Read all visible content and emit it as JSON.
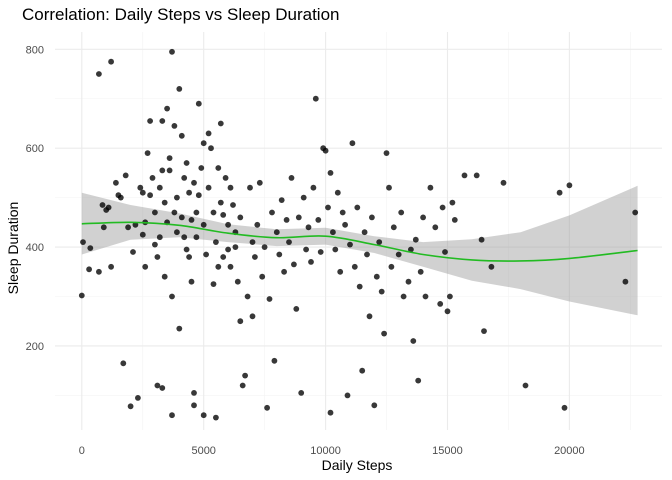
{
  "chart_data": {
    "type": "scatter",
    "title": "Correlation: Daily Steps vs Sleep Duration",
    "xlabel": "Daily Steps",
    "ylabel": "Sleep Duration",
    "xlim": [
      -1100,
      23800
    ],
    "ylim": [
      30,
      835
    ],
    "x_ticks": [
      0,
      5000,
      10000,
      15000,
      20000
    ],
    "y_ticks": [
      200,
      400,
      600,
      800
    ],
    "x_tick_labels": [
      "0",
      "5000",
      "10000",
      "15000",
      "20000"
    ],
    "y_tick_labels": [
      "200",
      "400",
      "600",
      "800"
    ],
    "grid": true,
    "legend": "none",
    "colors": {
      "points": "#000000",
      "smooth_line": "#22bb22",
      "ribbon": "#999999"
    },
    "points": [
      [
        0,
        302
      ],
      [
        50,
        410
      ],
      [
        300,
        355
      ],
      [
        350,
        398
      ],
      [
        700,
        750
      ],
      [
        700,
        350
      ],
      [
        850,
        485
      ],
      [
        900,
        440
      ],
      [
        1000,
        475
      ],
      [
        1100,
        480
      ],
      [
        1200,
        775
      ],
      [
        1200,
        360
      ],
      [
        1400,
        530
      ],
      [
        1500,
        505
      ],
      [
        1600,
        500
      ],
      [
        1700,
        165
      ],
      [
        1800,
        545
      ],
      [
        1900,
        440
      ],
      [
        2000,
        78
      ],
      [
        2100,
        390
      ],
      [
        2200,
        445
      ],
      [
        2300,
        95
      ],
      [
        2400,
        520
      ],
      [
        2500,
        425
      ],
      [
        2500,
        510
      ],
      [
        2600,
        450
      ],
      [
        2600,
        360
      ],
      [
        2700,
        590
      ],
      [
        2800,
        655
      ],
      [
        2800,
        505
      ],
      [
        2900,
        540
      ],
      [
        3000,
        470
      ],
      [
        3000,
        405
      ],
      [
        3100,
        380
      ],
      [
        3100,
        120
      ],
      [
        3200,
        520
      ],
      [
        3200,
        420
      ],
      [
        3300,
        655
      ],
      [
        3300,
        555
      ],
      [
        3300,
        115
      ],
      [
        3400,
        340
      ],
      [
        3400,
        490
      ],
      [
        3500,
        680
      ],
      [
        3500,
        450
      ],
      [
        3600,
        580
      ],
      [
        3600,
        555
      ],
      [
        3700,
        60
      ],
      [
        3700,
        795
      ],
      [
        3700,
        300
      ],
      [
        3800,
        645
      ],
      [
        3800,
        470
      ],
      [
        3900,
        500
      ],
      [
        3900,
        430
      ],
      [
        4000,
        720
      ],
      [
        4000,
        235
      ],
      [
        4100,
        625
      ],
      [
        4100,
        460
      ],
      [
        4200,
        540
      ],
      [
        4200,
        420
      ],
      [
        4300,
        570
      ],
      [
        4300,
        395
      ],
      [
        4400,
        510
      ],
      [
        4400,
        380
      ],
      [
        4500,
        455
      ],
      [
        4500,
        330
      ],
      [
        4600,
        530
      ],
      [
        4600,
        80
      ],
      [
        4600,
        105
      ],
      [
        4700,
        470
      ],
      [
        4700,
        420
      ],
      [
        4800,
        690
      ],
      [
        4800,
        505
      ],
      [
        4900,
        560
      ],
      [
        5000,
        60
      ],
      [
        5000,
        610
      ],
      [
        5000,
        445
      ],
      [
        5100,
        385
      ],
      [
        5200,
        520
      ],
      [
        5200,
        630
      ],
      [
        5300,
        600
      ],
      [
        5400,
        470
      ],
      [
        5400,
        325
      ],
      [
        5500,
        55
      ],
      [
        5500,
        410
      ],
      [
        5600,
        560
      ],
      [
        5600,
        360
      ],
      [
        5700,
        490
      ],
      [
        5700,
        650
      ],
      [
        5800,
        465
      ],
      [
        5800,
        380
      ],
      [
        5900,
        540
      ],
      [
        6000,
        445
      ],
      [
        6000,
        395
      ],
      [
        6100,
        520
      ],
      [
        6100,
        360
      ],
      [
        6200,
        485
      ],
      [
        6300,
        430
      ],
      [
        6300,
        400
      ],
      [
        6400,
        330
      ],
      [
        6500,
        460
      ],
      [
        6500,
        250
      ],
      [
        6600,
        120
      ],
      [
        6700,
        140
      ],
      [
        6800,
        300
      ],
      [
        6900,
        520
      ],
      [
        7000,
        260
      ],
      [
        7000,
        410
      ],
      [
        7100,
        380
      ],
      [
        7200,
        445
      ],
      [
        7300,
        530
      ],
      [
        7400,
        340
      ],
      [
        7500,
        400
      ],
      [
        7600,
        75
      ],
      [
        7700,
        295
      ],
      [
        7800,
        470
      ],
      [
        7900,
        170
      ],
      [
        8000,
        430
      ],
      [
        8100,
        385
      ],
      [
        8200,
        495
      ],
      [
        8300,
        350
      ],
      [
        8400,
        455
      ],
      [
        8500,
        410
      ],
      [
        8600,
        540
      ],
      [
        8700,
        365
      ],
      [
        8800,
        275
      ],
      [
        8900,
        460
      ],
      [
        9000,
        105
      ],
      [
        9100,
        500
      ],
      [
        9200,
        395
      ],
      [
        9300,
        440
      ],
      [
        9400,
        370
      ],
      [
        9500,
        520
      ],
      [
        9600,
        700
      ],
      [
        9700,
        455
      ],
      [
        9800,
        390
      ],
      [
        9900,
        600
      ],
      [
        10000,
        595
      ],
      [
        10100,
        480
      ],
      [
        10200,
        65
      ],
      [
        10200,
        550
      ],
      [
        10300,
        430
      ],
      [
        10400,
        395
      ],
      [
        10500,
        510
      ],
      [
        10600,
        350
      ],
      [
        10700,
        470
      ],
      [
        10800,
        445
      ],
      [
        10900,
        100
      ],
      [
        11000,
        405
      ],
      [
        11100,
        610
      ],
      [
        11200,
        360
      ],
      [
        11300,
        480
      ],
      [
        11400,
        320
      ],
      [
        11500,
        150
      ],
      [
        11600,
        430
      ],
      [
        11700,
        385
      ],
      [
        11800,
        260
      ],
      [
        11900,
        460
      ],
      [
        12000,
        80
      ],
      [
        12100,
        340
      ],
      [
        12200,
        410
      ],
      [
        12300,
        310
      ],
      [
        12400,
        225
      ],
      [
        12500,
        590
      ],
      [
        12600,
        520
      ],
      [
        12700,
        360
      ],
      [
        12800,
        440
      ],
      [
        13000,
        385
      ],
      [
        13100,
        470
      ],
      [
        13200,
        300
      ],
      [
        13400,
        330
      ],
      [
        13500,
        395
      ],
      [
        13600,
        210
      ],
      [
        13700,
        415
      ],
      [
        13800,
        130
      ],
      [
        13900,
        350
      ],
      [
        14000,
        460
      ],
      [
        14100,
        300
      ],
      [
        14300,
        520
      ],
      [
        14500,
        440
      ],
      [
        14700,
        285
      ],
      [
        14800,
        480
      ],
      [
        14900,
        390
      ],
      [
        15000,
        270
      ],
      [
        15100,
        300
      ],
      [
        15200,
        490
      ],
      [
        15300,
        455
      ],
      [
        15700,
        545
      ],
      [
        16200,
        545
      ],
      [
        16400,
        415
      ],
      [
        16500,
        230
      ],
      [
        16800,
        360
      ],
      [
        17300,
        530
      ],
      [
        18200,
        120
      ],
      [
        19600,
        510
      ],
      [
        19800,
        75
      ],
      [
        20000,
        525
      ],
      [
        22300,
        330
      ],
      [
        22700,
        470
      ]
    ],
    "smooth_fit": {
      "x": [
        0,
        2000,
        4000,
        6000,
        8000,
        10000,
        12000,
        14000,
        16000,
        18000,
        20000,
        22800
      ],
      "y": [
        447,
        450,
        444,
        428,
        419,
        422,
        405,
        385,
        374,
        372,
        377,
        393
      ],
      "ci_lower": [
        385,
        415,
        420,
        410,
        402,
        405,
        388,
        360,
        332,
        315,
        290,
        262
      ],
      "ci_upper": [
        510,
        485,
        468,
        446,
        436,
        439,
        422,
        410,
        416,
        430,
        464,
        524
      ]
    }
  }
}
